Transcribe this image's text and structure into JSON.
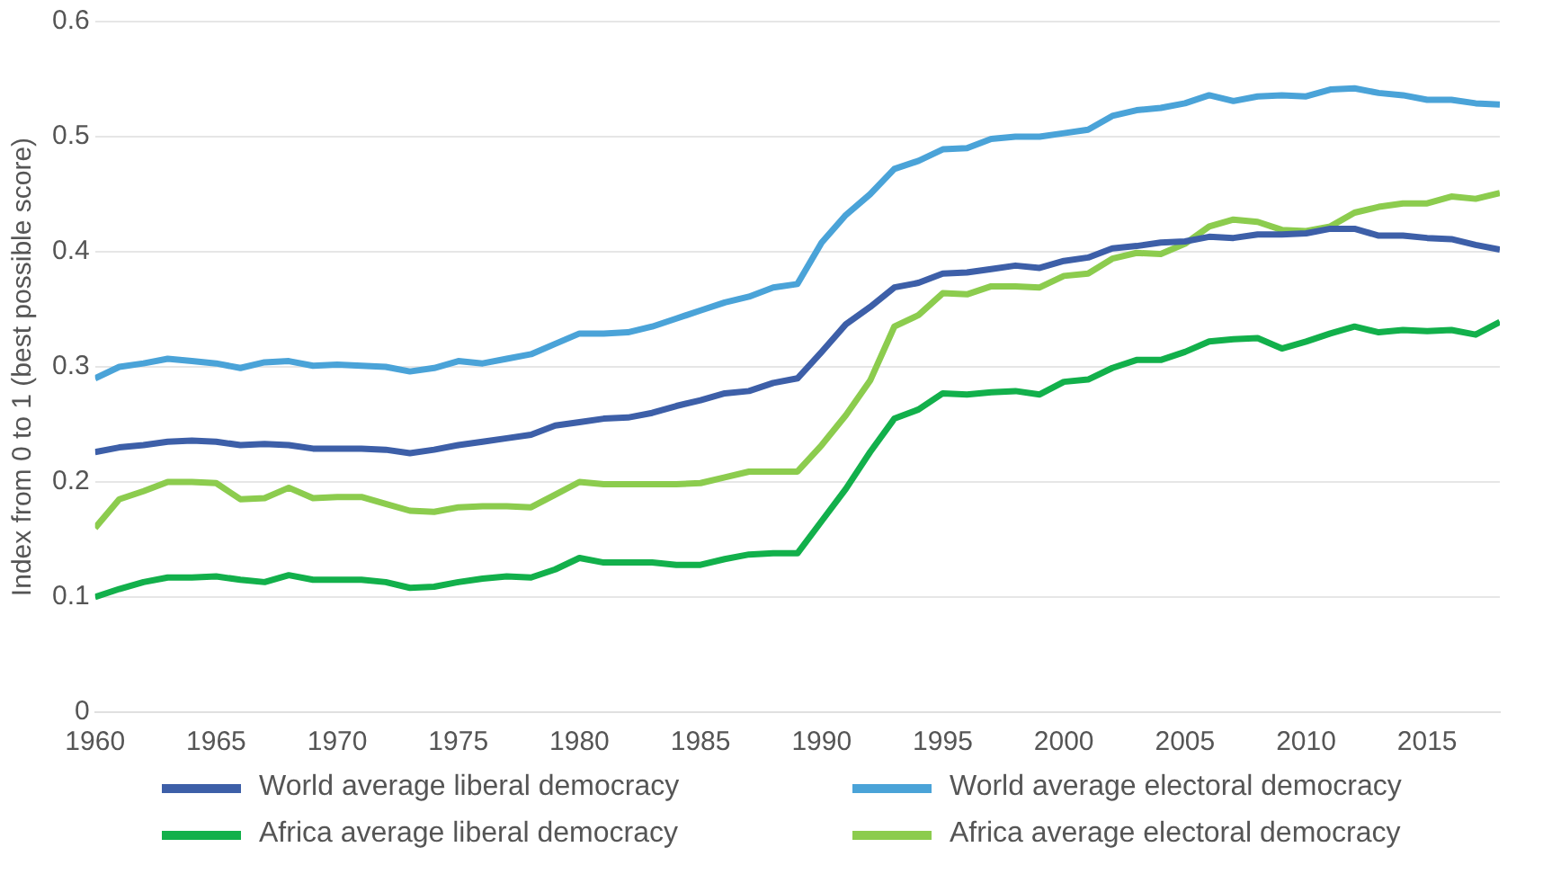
{
  "chart_data": {
    "type": "line",
    "ylabel": "Index from 0 to 1 (best possible score)",
    "x": [
      1960,
      1961,
      1962,
      1963,
      1964,
      1965,
      1966,
      1967,
      1968,
      1969,
      1970,
      1971,
      1972,
      1973,
      1974,
      1975,
      1976,
      1977,
      1978,
      1979,
      1980,
      1981,
      1982,
      1983,
      1984,
      1985,
      1986,
      1987,
      1988,
      1989,
      1990,
      1991,
      1992,
      1993,
      1994,
      1995,
      1996,
      1997,
      1998,
      1999,
      2000,
      2001,
      2002,
      2003,
      2004,
      2005,
      2006,
      2007,
      2008,
      2009,
      2010,
      2011,
      2012,
      2013,
      2014,
      2015,
      2016,
      2017,
      2018
    ],
    "series": [
      {
        "name": "World average liberal democracy",
        "color": "#3d5fa8",
        "values": [
          0.226,
          0.23,
          0.232,
          0.235,
          0.236,
          0.235,
          0.232,
          0.233,
          0.232,
          0.229,
          0.229,
          0.229,
          0.228,
          0.225,
          0.228,
          0.232,
          0.235,
          0.238,
          0.241,
          0.249,
          0.252,
          0.255,
          0.256,
          0.26,
          0.266,
          0.271,
          0.277,
          0.279,
          0.286,
          0.29,
          0.313,
          0.337,
          0.352,
          0.369,
          0.373,
          0.381,
          0.382,
          0.385,
          0.388,
          0.386,
          0.392,
          0.395,
          0.403,
          0.405,
          0.408,
          0.409,
          0.413,
          0.412,
          0.415,
          0.415,
          0.416,
          0.42,
          0.42,
          0.414,
          0.414,
          0.412,
          0.411,
          0.406,
          0.402
        ]
      },
      {
        "name": "World average electoral democracy",
        "color": "#4aa3d8",
        "values": [
          0.29,
          0.3,
          0.303,
          0.307,
          0.305,
          0.303,
          0.299,
          0.304,
          0.305,
          0.301,
          0.302,
          0.301,
          0.3,
          0.296,
          0.299,
          0.305,
          0.303,
          0.307,
          0.311,
          0.32,
          0.329,
          0.329,
          0.33,
          0.335,
          0.342,
          0.349,
          0.356,
          0.361,
          0.369,
          0.372,
          0.408,
          0.432,
          0.45,
          0.472,
          0.479,
          0.489,
          0.49,
          0.498,
          0.5,
          0.5,
          0.503,
          0.506,
          0.518,
          0.523,
          0.525,
          0.529,
          0.536,
          0.531,
          0.535,
          0.536,
          0.535,
          0.541,
          0.542,
          0.538,
          0.536,
          0.532,
          0.532,
          0.529,
          0.528
        ]
      },
      {
        "name": "Africa average liberal democracy",
        "color": "#12b04b",
        "values": [
          0.1,
          0.107,
          0.113,
          0.117,
          0.117,
          0.118,
          0.115,
          0.113,
          0.119,
          0.115,
          0.115,
          0.115,
          0.113,
          0.108,
          0.109,
          0.113,
          0.116,
          0.118,
          0.117,
          0.124,
          0.134,
          0.13,
          0.13,
          0.13,
          0.128,
          0.128,
          0.133,
          0.137,
          0.138,
          0.138,
          0.166,
          0.194,
          0.226,
          0.255,
          0.263,
          0.277,
          0.276,
          0.278,
          0.279,
          0.276,
          0.287,
          0.289,
          0.299,
          0.306,
          0.306,
          0.313,
          0.322,
          0.324,
          0.325,
          0.316,
          0.322,
          0.329,
          0.335,
          0.33,
          0.332,
          0.331,
          0.332,
          0.328,
          0.339
        ]
      },
      {
        "name": "Africa average electoral democracy",
        "color": "#8ccc4e",
        "values": [
          0.16,
          0.185,
          0.192,
          0.2,
          0.2,
          0.199,
          0.185,
          0.186,
          0.195,
          0.186,
          0.187,
          0.187,
          0.181,
          0.175,
          0.174,
          0.178,
          0.179,
          0.179,
          0.178,
          0.189,
          0.2,
          0.198,
          0.198,
          0.198,
          0.198,
          0.199,
          0.204,
          0.209,
          0.209,
          0.209,
          0.232,
          0.258,
          0.288,
          0.335,
          0.345,
          0.364,
          0.363,
          0.37,
          0.37,
          0.369,
          0.379,
          0.381,
          0.394,
          0.399,
          0.398,
          0.407,
          0.422,
          0.428,
          0.426,
          0.419,
          0.418,
          0.422,
          0.434,
          0.439,
          0.442,
          0.442,
          0.448,
          0.446,
          0.451
        ]
      }
    ],
    "xlim": [
      1960,
      2018
    ],
    "xticks": [
      1960,
      1965,
      1970,
      1975,
      1980,
      1985,
      1990,
      1995,
      2000,
      2005,
      2010,
      2015
    ],
    "ylim": [
      0,
      0.6
    ],
    "yticks": [
      0,
      0.1,
      0.2,
      0.3,
      0.4,
      0.5,
      0.6
    ],
    "grid": "y",
    "legend": "bottom",
    "marker": "none",
    "line_style": "solid"
  }
}
